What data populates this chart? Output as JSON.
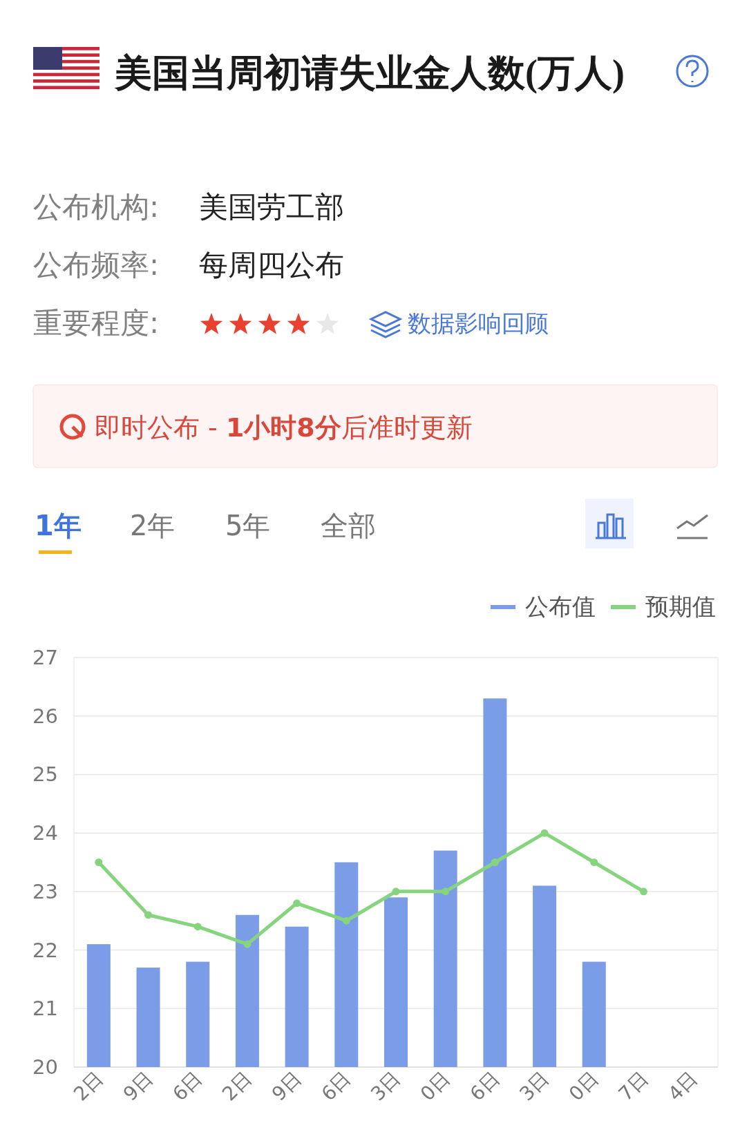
{
  "chart_data": {
    "type": "bar",
    "title": "美国当周初请失业金人数(万人)",
    "annotations": [
      "公布机构:",
      "美国劳工部",
      "公布频率:",
      "每周四公布",
      "重要程度:",
      "数据影响回顾",
      "即时公布 - **1小时8分**后准时更新",
      "1年",
      "2年",
      "5年",
      "全部"
    ],
    "categories": [
      "2日",
      "9日",
      "6日",
      "2日",
      "9日",
      "6日",
      "3日",
      "0日",
      "6日",
      "3日",
      "0日",
      "7日",
      "4日"
    ],
    "series": [
      {
        "name": "公布值",
        "color": "#7b9de8",
        "values": [
          22.1,
          21.7,
          21.8,
          22.6,
          22.4,
          23.5,
          22.9,
          23.7,
          26.3,
          23.1,
          21.8,
          null,
          null
        ]
      },
      {
        "name": "预期值",
        "type": "line",
        "color": "#86d47e",
        "values": [
          23.5,
          22.6,
          22.4,
          22.1,
          22.8,
          22.5,
          23.0,
          23.0,
          23.5,
          24.0,
          23.5,
          23.0,
          null
        ]
      }
    ],
    "ylim": [
      20,
      27
    ],
    "yticks": [
      20,
      21,
      22,
      23,
      24,
      25,
      26,
      27
    ],
    "grid": "y",
    "legend": "top right",
    "marker": "circle"
  }
}
